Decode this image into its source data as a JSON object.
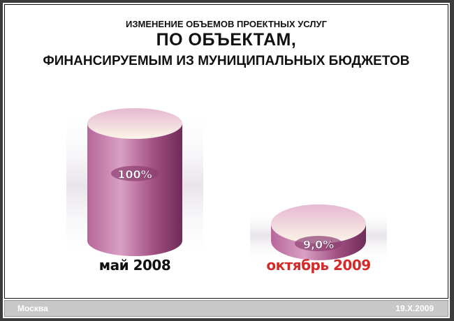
{
  "title": {
    "line1": "ИЗМЕНЕНИЕ ОБЪЕМОВ ПРОЕКТНЫХ УСЛУГ",
    "line2": "ПО ОБЪЕКТАМ,",
    "line3": "ФИНАНСИРУЕМЫМ ИЗ МУНИЦИПАЛЬНЫХ БЮДЖЕТОВ"
  },
  "chart_data": {
    "type": "bar",
    "style": "3d-cylinder",
    "categories": [
      "май 2008",
      "октябрь 2009"
    ],
    "values": [
      100,
      9.0
    ],
    "data_labels": [
      "100%",
      "9,0%"
    ],
    "category_colors": [
      "#111111",
      "#d42a2a"
    ],
    "bar_color": "#a0507f"
  },
  "footer": {
    "city": "Москва",
    "date": "19.X.2009"
  }
}
